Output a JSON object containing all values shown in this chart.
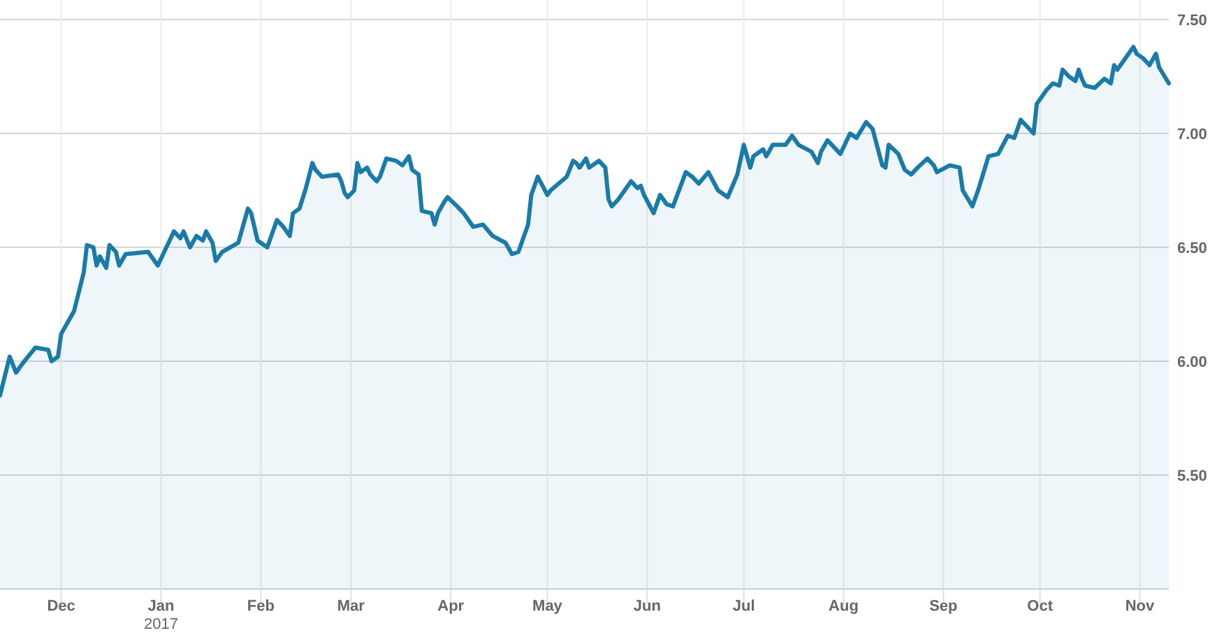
{
  "chart_data": {
    "type": "area",
    "x": [
      "2016-11-12",
      "2016-11-15",
      "2016-11-17",
      "2016-11-19",
      "2016-11-23",
      "2016-11-27",
      "2016-11-28",
      "2016-11-30",
      "2016-12-01",
      "2016-12-05",
      "2016-12-08",
      "2016-12-09",
      "2016-12-11",
      "2016-12-12",
      "2016-12-13",
      "2016-12-15",
      "2016-12-16",
      "2016-12-18",
      "2016-12-19",
      "2016-12-21",
      "2016-12-28",
      "2016-12-31",
      "2017-01-03",
      "2017-01-05",
      "2017-01-07",
      "2017-01-08",
      "2017-01-10",
      "2017-01-12",
      "2017-01-14",
      "2017-01-15",
      "2017-01-17",
      "2017-01-18",
      "2017-01-20",
      "2017-01-25",
      "2017-01-28",
      "2017-01-29",
      "2017-01-31",
      "2017-02-03",
      "2017-02-06",
      "2017-02-08",
      "2017-02-10",
      "2017-02-11",
      "2017-02-13",
      "2017-02-15",
      "2017-02-17",
      "2017-02-18",
      "2017-02-20",
      "2017-02-25",
      "2017-02-26",
      "2017-02-27",
      "2017-02-28",
      "2017-03-02",
      "2017-03-03",
      "2017-03-04",
      "2017-03-06",
      "2017-03-07",
      "2017-03-09",
      "2017-03-10",
      "2017-03-12",
      "2017-03-15",
      "2017-03-17",
      "2017-03-19",
      "2017-03-20",
      "2017-03-22",
      "2017-03-23",
      "2017-03-26",
      "2017-03-27",
      "2017-03-28",
      "2017-03-30",
      "2017-03-31",
      "2017-04-03",
      "2017-04-05",
      "2017-04-08",
      "2017-04-11",
      "2017-04-14",
      "2017-04-18",
      "2017-04-20",
      "2017-04-22",
      "2017-04-25",
      "2017-04-26",
      "2017-04-28",
      "2017-05-01",
      "2017-05-02",
      "2017-05-07",
      "2017-05-09",
      "2017-05-10",
      "2017-05-11",
      "2017-05-13",
      "2017-05-14",
      "2017-05-17",
      "2017-05-19",
      "2017-05-20",
      "2017-05-21",
      "2017-05-23",
      "2017-05-27",
      "2017-05-29",
      "2017-05-30",
      "2017-05-31",
      "2017-06-03",
      "2017-06-05",
      "2017-06-07",
      "2017-06-09",
      "2017-06-13",
      "2017-06-15",
      "2017-06-17",
      "2017-06-20",
      "2017-06-23",
      "2017-06-26",
      "2017-06-29",
      "2017-07-01",
      "2017-07-03",
      "2017-07-04",
      "2017-07-07",
      "2017-07-08",
      "2017-07-10",
      "2017-07-14",
      "2017-07-16",
      "2017-07-18",
      "2017-07-22",
      "2017-07-24",
      "2017-07-25",
      "2017-07-27",
      "2017-07-31",
      "2017-08-03",
      "2017-08-05",
      "2017-08-08",
      "2017-08-10",
      "2017-08-13",
      "2017-08-14",
      "2017-08-15",
      "2017-08-18",
      "2017-08-20",
      "2017-08-22",
      "2017-08-24",
      "2017-08-27",
      "2017-08-29",
      "2017-08-30",
      "2017-09-03",
      "2017-09-06",
      "2017-09-07",
      "2017-09-10",
      "2017-09-12",
      "2017-09-15",
      "2017-09-18",
      "2017-09-21",
      "2017-09-23",
      "2017-09-25",
      "2017-09-29",
      "2017-09-30",
      "2017-10-03",
      "2017-10-05",
      "2017-10-07",
      "2017-10-08",
      "2017-10-10",
      "2017-10-12",
      "2017-10-13",
      "2017-10-14",
      "2017-10-15",
      "2017-10-18",
      "2017-10-21",
      "2017-10-23",
      "2017-10-24",
      "2017-10-25",
      "2017-10-28",
      "2017-10-30",
      "2017-10-31",
      "2017-11-02",
      "2017-11-04",
      "2017-11-06",
      "2017-11-07",
      "2017-11-10"
    ],
    "series": [
      {
        "color": "#1a7aa8",
        "values": [
          5.85,
          6.02,
          5.95,
          5.99,
          6.06,
          6.05,
          6.0,
          6.02,
          6.12,
          6.22,
          6.39,
          6.51,
          6.5,
          6.42,
          6.46,
          6.41,
          6.51,
          6.48,
          6.42,
          6.47,
          6.48,
          6.42,
          6.51,
          6.57,
          6.54,
          6.57,
          6.5,
          6.55,
          6.53,
          6.57,
          6.52,
          6.44,
          6.48,
          6.52,
          6.67,
          6.65,
          6.53,
          6.5,
          6.62,
          6.59,
          6.55,
          6.65,
          6.67,
          6.76,
          6.87,
          6.84,
          6.81,
          6.82,
          6.79,
          6.74,
          6.72,
          6.75,
          6.87,
          6.83,
          6.85,
          6.82,
          6.79,
          6.81,
          6.89,
          6.88,
          6.86,
          6.9,
          6.84,
          6.82,
          6.66,
          6.65,
          6.6,
          6.65,
          6.7,
          6.72,
          6.68,
          6.65,
          6.59,
          6.6,
          6.55,
          6.52,
          6.47,
          6.48,
          6.6,
          6.73,
          6.81,
          6.73,
          6.75,
          6.81,
          6.88,
          6.87,
          6.85,
          6.89,
          6.85,
          6.88,
          6.85,
          6.71,
          6.68,
          6.71,
          6.79,
          6.76,
          6.77,
          6.73,
          6.65,
          6.73,
          6.69,
          6.68,
          6.83,
          6.81,
          6.78,
          6.83,
          6.75,
          6.72,
          6.82,
          6.95,
          6.85,
          6.9,
          6.93,
          6.9,
          6.95,
          6.95,
          6.99,
          6.95,
          6.92,
          6.87,
          6.92,
          6.97,
          6.91,
          7.0,
          6.98,
          7.05,
          7.02,
          6.86,
          6.85,
          6.95,
          6.91,
          6.84,
          6.82,
          6.85,
          6.89,
          6.86,
          6.83,
          6.86,
          6.85,
          6.75,
          6.68,
          6.76,
          6.9,
          6.91,
          6.99,
          6.98,
          7.06,
          7.0,
          7.13,
          7.19,
          7.22,
          7.21,
          7.28,
          7.25,
          7.23,
          7.28,
          7.24,
          7.21,
          7.2,
          7.24,
          7.22,
          7.3,
          7.28,
          7.34,
          7.38,
          7.35,
          7.33,
          7.3,
          7.35,
          7.29,
          7.22
        ]
      }
    ],
    "xlim": [
      "2016-11-12",
      "2017-11-10"
    ],
    "ylim": [
      5,
      7.5
    ],
    "xticks": [
      {
        "value": "2016-12-01",
        "label": "Dec"
      },
      {
        "value": "2017-01-01",
        "label": "Jan\n2017"
      },
      {
        "value": "2017-02-01",
        "label": "Feb"
      },
      {
        "value": "2017-03-01",
        "label": "Mar"
      },
      {
        "value": "2017-04-01",
        "label": "Apr"
      },
      {
        "value": "2017-05-01",
        "label": "May"
      },
      {
        "value": "2017-06-01",
        "label": "Jun"
      },
      {
        "value": "2017-07-01",
        "label": "Jul"
      },
      {
        "value": "2017-08-01",
        "label": "Aug"
      },
      {
        "value": "2017-09-01",
        "label": "Sep"
      },
      {
        "value": "2017-10-01",
        "label": "Oct"
      },
      {
        "value": "2017-11-01",
        "label": "Nov"
      }
    ],
    "yticks": [
      {
        "value": 5.5,
        "label": "5.50"
      },
      {
        "value": 6,
        "label": "6.00"
      },
      {
        "value": 6.5,
        "label": "6.50"
      },
      {
        "value": 7,
        "label": "7.00"
      },
      {
        "value": 7.5,
        "label": "7.50"
      }
    ],
    "grid": true
  }
}
